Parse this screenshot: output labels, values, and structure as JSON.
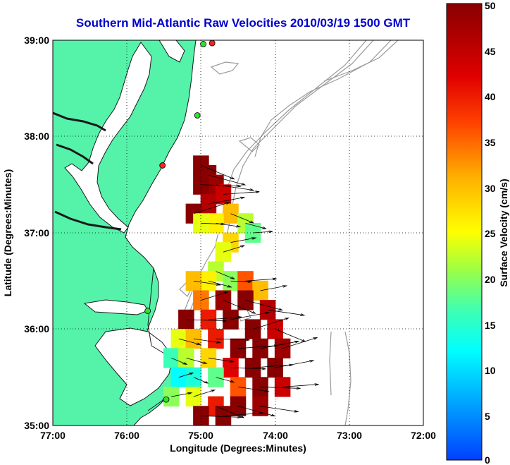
{
  "chart_data": {
    "type": "heatmap",
    "title": "Southern Mid-Atlantic Raw Velocities 2010/03/19 1500 GMT",
    "xlabel": "Longitude (Degrees:Minutes)",
    "ylabel": "Latitude (Degrees:Minutes)",
    "x_ticks": [
      "77:00",
      "76:00",
      "75:00",
      "74:00",
      "73:00",
      "72:00"
    ],
    "y_ticks": [
      "39:00",
      "38:00",
      "37:00",
      "36:00",
      "35:00"
    ],
    "xlim": [
      -77,
      -72
    ],
    "ylim": [
      35,
      39
    ],
    "grid": true,
    "colorbar": {
      "label": "Surface Velocity (cm/s)",
      "min": 0,
      "max": 50,
      "ticks": [
        "0",
        "5",
        "10",
        "15",
        "20",
        "25",
        "30",
        "35",
        "40",
        "45",
        "50"
      ]
    },
    "colors": {
      "title": "#0000cc",
      "land": "#55f2aa",
      "coast": "#1a1a1a",
      "bathymetry": "#9a9a9a",
      "grid": "#000000"
    },
    "station_markers": [
      {
        "lon": -74.85,
        "lat": 38.97,
        "status": "red"
      },
      {
        "lon": -74.97,
        "lat": 38.96,
        "status": "green"
      },
      {
        "lon": -75.05,
        "lat": 38.22,
        "status": "green"
      },
      {
        "lon": -75.52,
        "lat": 37.7,
        "status": "red"
      },
      {
        "lon": -75.72,
        "lat": 36.19,
        "status": "green"
      },
      {
        "lon": -75.47,
        "lat": 35.27,
        "status": "green"
      }
    ],
    "velocity_field": [
      {
        "lon": -75.0,
        "lat": 37.7,
        "speed": 50
      },
      {
        "lon": -74.9,
        "lat": 37.6,
        "speed": 50
      },
      {
        "lon": -74.8,
        "lat": 37.5,
        "speed": 48
      },
      {
        "lon": -75.0,
        "lat": 37.5,
        "speed": 50
      },
      {
        "lon": -74.7,
        "lat": 37.4,
        "speed": 44
      },
      {
        "lon": -74.9,
        "lat": 37.3,
        "speed": 46
      },
      {
        "lon": -75.1,
        "lat": 37.2,
        "speed": 50
      },
      {
        "lon": -74.6,
        "lat": 37.2,
        "speed": 30
      },
      {
        "lon": -74.4,
        "lat": 37.1,
        "speed": 22
      },
      {
        "lon": -74.8,
        "lat": 37.1,
        "speed": 26
      },
      {
        "lon": -75.0,
        "lat": 37.1,
        "speed": 24
      },
      {
        "lon": -74.3,
        "lat": 37.0,
        "speed": 18
      },
      {
        "lon": -74.6,
        "lat": 36.9,
        "speed": 28
      },
      {
        "lon": -74.7,
        "lat": 36.8,
        "speed": 24
      },
      {
        "lon": -74.8,
        "lat": 36.6,
        "speed": 22
      },
      {
        "lon": -74.9,
        "lat": 36.5,
        "speed": 26
      },
      {
        "lon": -75.1,
        "lat": 36.5,
        "speed": 30
      },
      {
        "lon": -74.6,
        "lat": 36.5,
        "speed": 20
      },
      {
        "lon": -74.4,
        "lat": 36.5,
        "speed": 36
      },
      {
        "lon": -74.2,
        "lat": 36.4,
        "speed": 30
      },
      {
        "lon": -75.0,
        "lat": 36.3,
        "speed": 34
      },
      {
        "lon": -74.7,
        "lat": 36.3,
        "speed": 48
      },
      {
        "lon": -74.4,
        "lat": 36.3,
        "speed": 50
      },
      {
        "lon": -74.1,
        "lat": 36.2,
        "speed": 46
      },
      {
        "lon": -75.2,
        "lat": 36.1,
        "speed": 50
      },
      {
        "lon": -74.9,
        "lat": 36.1,
        "speed": 40
      },
      {
        "lon": -74.6,
        "lat": 36.1,
        "speed": 50
      },
      {
        "lon": -74.3,
        "lat": 36.0,
        "speed": 50
      },
      {
        "lon": -74.0,
        "lat": 36.0,
        "speed": 44
      },
      {
        "lon": -75.3,
        "lat": 35.9,
        "speed": 24
      },
      {
        "lon": -75.1,
        "lat": 35.9,
        "speed": 30
      },
      {
        "lon": -74.8,
        "lat": 35.9,
        "speed": 40
      },
      {
        "lon": -74.5,
        "lat": 35.8,
        "speed": 50
      },
      {
        "lon": -74.2,
        "lat": 35.8,
        "speed": 50
      },
      {
        "lon": -73.9,
        "lat": 35.8,
        "speed": 48
      },
      {
        "lon": -75.4,
        "lat": 35.7,
        "speed": 16
      },
      {
        "lon": -75.2,
        "lat": 35.7,
        "speed": 22
      },
      {
        "lon": -74.9,
        "lat": 35.7,
        "speed": 28
      },
      {
        "lon": -74.6,
        "lat": 35.6,
        "speed": 42
      },
      {
        "lon": -74.3,
        "lat": 35.6,
        "speed": 50
      },
      {
        "lon": -74.0,
        "lat": 35.6,
        "speed": 50
      },
      {
        "lon": -75.3,
        "lat": 35.5,
        "speed": 12
      },
      {
        "lon": -75.1,
        "lat": 35.5,
        "speed": 14
      },
      {
        "lon": -74.8,
        "lat": 35.5,
        "speed": 18
      },
      {
        "lon": -74.5,
        "lat": 35.4,
        "speed": 36
      },
      {
        "lon": -74.2,
        "lat": 35.4,
        "speed": 50
      },
      {
        "lon": -73.9,
        "lat": 35.4,
        "speed": 44
      },
      {
        "lon": -75.4,
        "lat": 35.3,
        "speed": 20
      },
      {
        "lon": -75.1,
        "lat": 35.3,
        "speed": 24
      },
      {
        "lon": -74.8,
        "lat": 35.2,
        "speed": 40
      },
      {
        "lon": -74.5,
        "lat": 35.2,
        "speed": 50
      },
      {
        "lon": -74.2,
        "lat": 35.2,
        "speed": 48
      },
      {
        "lon": -75.0,
        "lat": 35.1,
        "speed": 50
      },
      {
        "lon": -74.7,
        "lat": 35.1,
        "speed": 50
      }
    ]
  }
}
